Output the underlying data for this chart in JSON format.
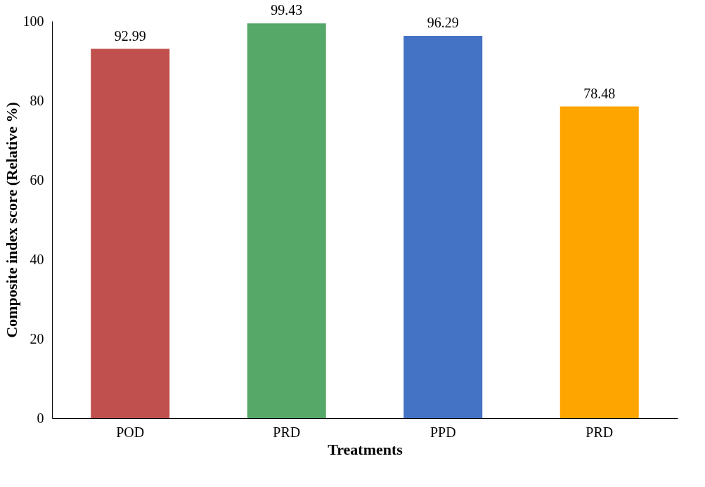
{
  "chart_data": {
    "type": "bar",
    "xlabel": "Treatments",
    "ylabel": "Composite index score (Relative %)",
    "categories": [
      "POD",
      "PRD",
      "PPD",
      "PRD"
    ],
    "values": [
      92.99,
      99.43,
      96.29,
      78.48
    ],
    "colors": [
      "#c0504d",
      "#55a868",
      "#4472c4",
      "#ffa500"
    ],
    "ylim": [
      0,
      100
    ],
    "yticks": [
      0,
      20,
      40,
      60,
      80,
      100
    ],
    "grid": false,
    "data_labels": true
  }
}
